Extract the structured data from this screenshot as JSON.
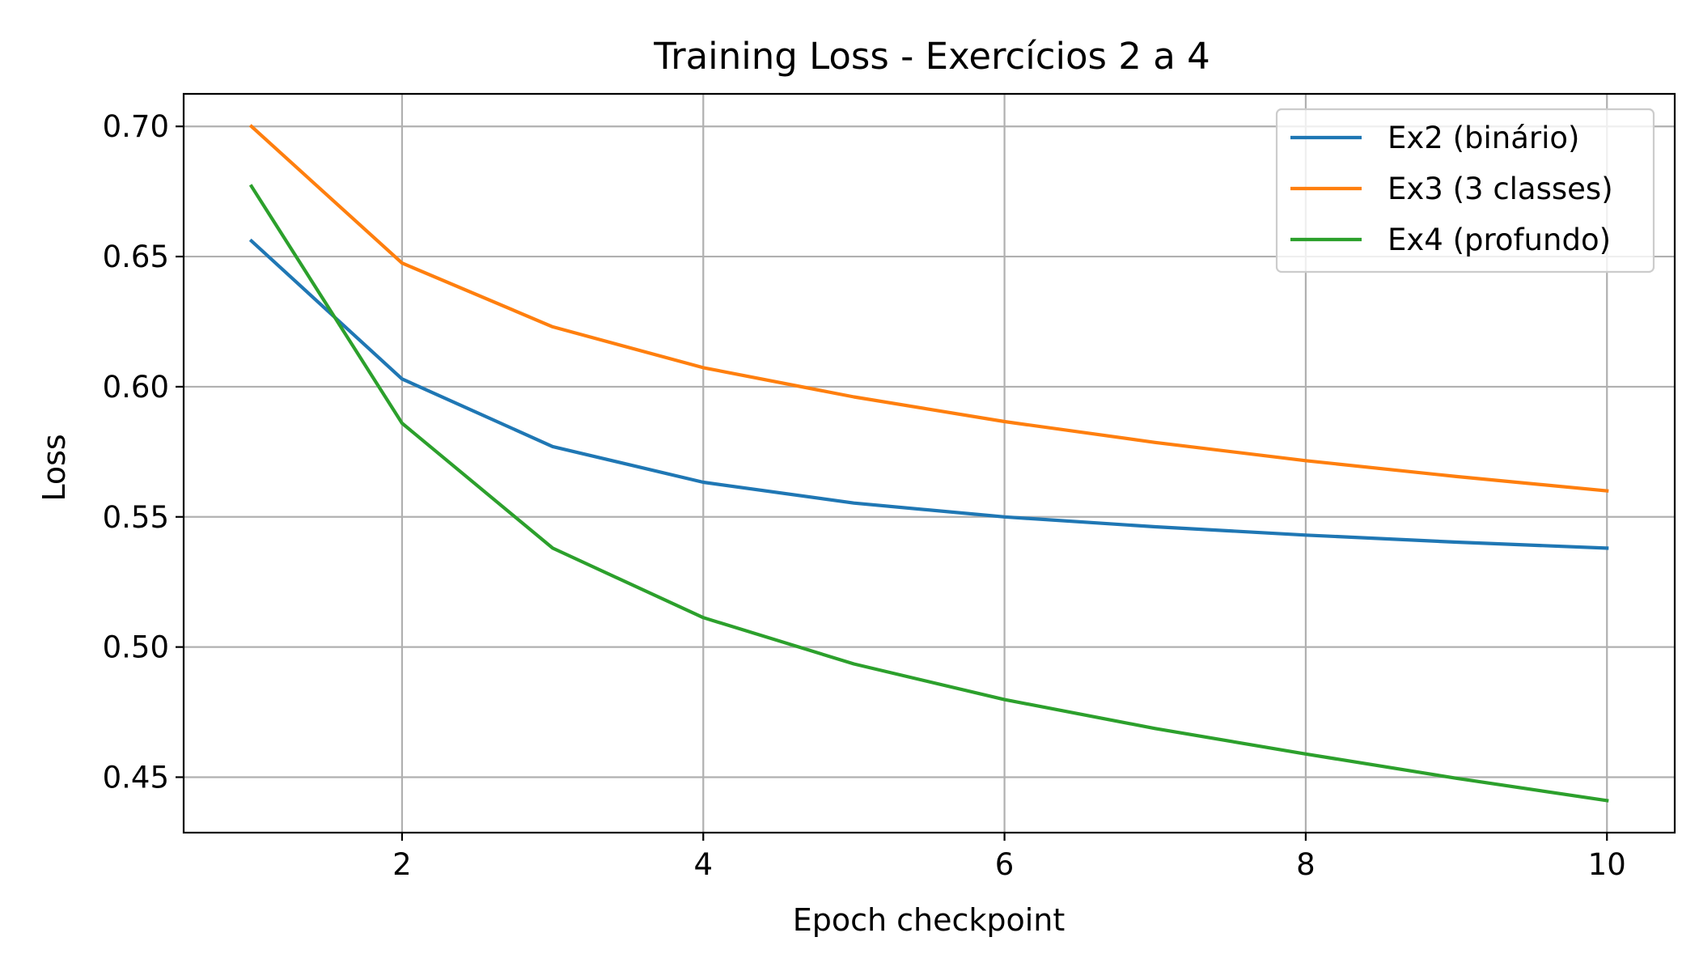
{
  "chart_data": {
    "type": "line",
    "title": "Training Loss - Exercícios 2 a 4",
    "xlabel": "Epoch checkpoint",
    "ylabel": "Loss",
    "x": [
      1,
      2,
      3,
      4,
      5,
      6,
      7,
      8,
      9,
      10
    ],
    "xlim": [
      0.55,
      10.45
    ],
    "ylim": [
      0.4287,
      0.7125
    ],
    "xticks": [
      2,
      4,
      6,
      8,
      10
    ],
    "xtick_labels": [
      "2",
      "4",
      "6",
      "8",
      "10"
    ],
    "yticks": [
      0.45,
      0.5,
      0.55,
      0.6,
      0.65,
      0.7
    ],
    "ytick_labels": [
      "0.45",
      "0.50",
      "0.55",
      "0.60",
      "0.65",
      "0.70"
    ],
    "grid": true,
    "legend_position": "top-right",
    "series": [
      {
        "name": "Ex2 (binário)",
        "color": "#1f77b4",
        "values": [
          0.656,
          0.603,
          0.577,
          0.5633,
          0.5553,
          0.55,
          0.5462,
          0.543,
          0.5403,
          0.538
        ]
      },
      {
        "name": "Ex3 (3 classes)",
        "color": "#ff7f0e",
        "values": [
          0.7,
          0.6475,
          0.623,
          0.6073,
          0.5961,
          0.5866,
          0.5786,
          0.5716,
          0.5655,
          0.56
        ]
      },
      {
        "name": "Ex4 (profundo)",
        "color": "#2ca02c",
        "values": [
          0.677,
          0.586,
          0.538,
          0.5113,
          0.4935,
          0.4798,
          0.4687,
          0.4589,
          0.4496,
          0.441
        ]
      }
    ]
  }
}
